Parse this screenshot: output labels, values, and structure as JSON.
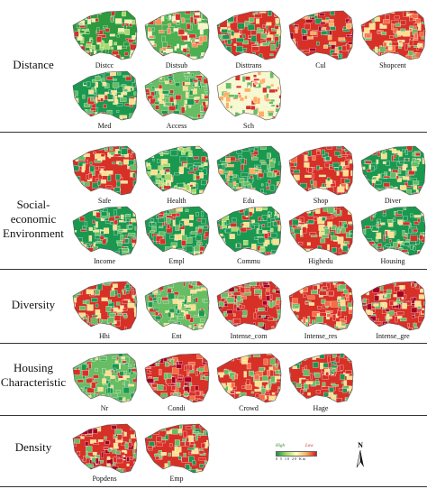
{
  "categories": [
    {
      "id": "distance",
      "label": "Distance",
      "maps": [
        {
          "name": "Distcc",
          "colors": [
            "#2d9a3e",
            "#f2efb0",
            "#d73027",
            "#a6d96a"
          ]
        },
        {
          "name": "Distsub",
          "colors": [
            "#4caf50",
            "#d73027",
            "#f7f3c4",
            "#fc8d59"
          ]
        },
        {
          "name": "Disttrans",
          "colors": [
            "#d73027",
            "#66bd63",
            "#fee08b",
            "#1a9850"
          ]
        },
        {
          "name": "Cul",
          "colors": [
            "#d73027",
            "#1a9850",
            "#fdae61",
            "#a50026"
          ]
        },
        {
          "name": "Shopcent",
          "colors": [
            "#d73027",
            "#f46d43",
            "#66bd63",
            "#fee08b"
          ]
        },
        {
          "name": "Med",
          "colors": [
            "#1a9850",
            "#d73027",
            "#fee08b",
            "#66bd63"
          ]
        },
        {
          "name": "Access",
          "colors": [
            "#66bd63",
            "#d73027",
            "#fee08b",
            "#1a9850"
          ]
        },
        {
          "name": "Sch",
          "colors": [
            "#f7f7d0",
            "#d73027",
            "#66bd63",
            "#fdae61"
          ]
        }
      ]
    },
    {
      "id": "social",
      "label": "Social-economic Environment",
      "maps": [
        {
          "name": "Safe",
          "colors": [
            "#d73027",
            "#1a9850",
            "#fee08b",
            "#66bd63"
          ]
        },
        {
          "name": "Health",
          "colors": [
            "#1a9850",
            "#d73027",
            "#fee08b",
            "#a6d96a"
          ]
        },
        {
          "name": "Edu",
          "colors": [
            "#1a9850",
            "#d73027",
            "#fdae61",
            "#66bd63"
          ]
        },
        {
          "name": "Shop",
          "colors": [
            "#d73027",
            "#1a9850",
            "#fee08b",
            "#f46d43"
          ]
        },
        {
          "name": "Diver",
          "colors": [
            "#1a9850",
            "#d73027",
            "#66bd63",
            "#fee08b"
          ]
        },
        {
          "name": "Income",
          "colors": [
            "#1a9850",
            "#d73027",
            "#66bd63",
            "#fee08b"
          ]
        },
        {
          "name": "Empl",
          "colors": [
            "#1a9850",
            "#d73027",
            "#fee08b",
            "#66bd63"
          ]
        },
        {
          "name": "Commu",
          "colors": [
            "#1a9850",
            "#d73027",
            "#fee08b",
            "#a6d96a"
          ]
        },
        {
          "name": "Highedu",
          "colors": [
            "#d73027",
            "#1a9850",
            "#fee08b",
            "#66bd63"
          ]
        },
        {
          "name": "Housing",
          "colors": [
            "#1a9850",
            "#d73027",
            "#66bd63",
            "#fee08b"
          ]
        }
      ]
    },
    {
      "id": "diversity",
      "label": "Diversity",
      "maps": [
        {
          "name": "Hhi",
          "colors": [
            "#d73027",
            "#66bd63",
            "#fee08b",
            "#1a9850"
          ]
        },
        {
          "name": "Ent",
          "colors": [
            "#66bd63",
            "#1a9850",
            "#fee08b",
            "#d73027"
          ]
        },
        {
          "name": "Intense_com",
          "colors": [
            "#d73027",
            "#a50026",
            "#f46d43",
            "#66bd63"
          ]
        },
        {
          "name": "Intense_res",
          "colors": [
            "#d73027",
            "#66bd63",
            "#fee08b",
            "#f46d43"
          ]
        },
        {
          "name": "Intense_gre",
          "colors": [
            "#d73027",
            "#a50026",
            "#66bd63",
            "#fee08b"
          ]
        }
      ]
    },
    {
      "id": "housing",
      "label": "Housing Characteristic",
      "maps": [
        {
          "name": "Nr",
          "colors": [
            "#66bd63",
            "#d73027",
            "#fee08b",
            "#1a9850"
          ]
        },
        {
          "name": "Condi",
          "colors": [
            "#d73027",
            "#a50026",
            "#f46d43",
            "#66bd63"
          ]
        },
        {
          "name": "Crowd",
          "colors": [
            "#d73027",
            "#f46d43",
            "#fee08b",
            "#66bd63"
          ]
        },
        {
          "name": "Hage",
          "colors": [
            "#d73027",
            "#1a9850",
            "#fee08b",
            "#66bd63"
          ]
        }
      ]
    },
    {
      "id": "density",
      "label": "Density",
      "maps": [
        {
          "name": "Popdens",
          "colors": [
            "#d73027",
            "#a50026",
            "#66bd63",
            "#fee08b"
          ]
        },
        {
          "name": "Emp",
          "colors": [
            "#d73027",
            "#66bd63",
            "#fee08b",
            "#1a9850"
          ]
        }
      ]
    }
  ],
  "legend": {
    "high_label": "High",
    "low_label": "Low",
    "scale_text": "0  5  10    20 Km"
  },
  "north_label": "N"
}
